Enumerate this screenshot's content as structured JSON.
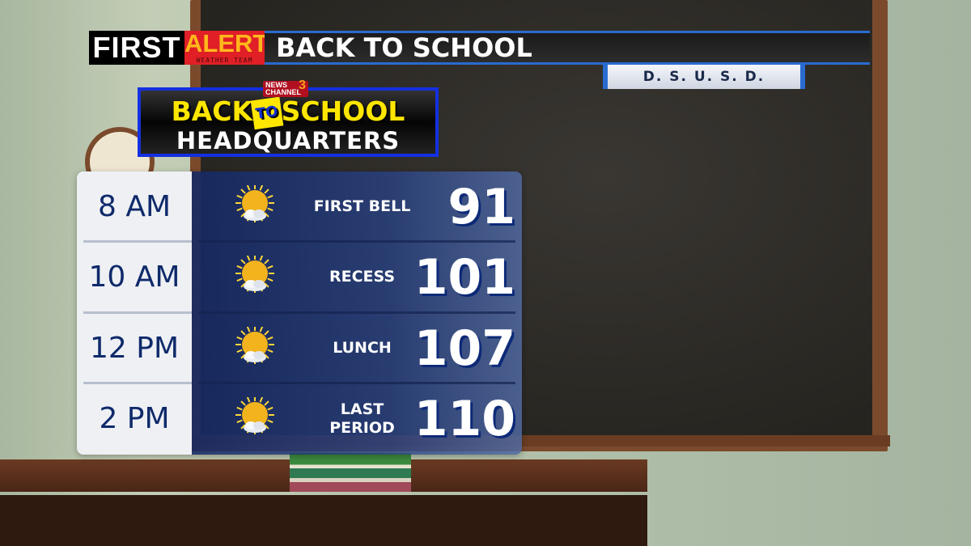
{
  "banner": {
    "first": "FIRST",
    "alert": "ALERT",
    "weather_team": "WEATHER TEAM",
    "title": "BACK TO SCHOOL"
  },
  "district_tab": "D. S. U. S. D.",
  "logo": {
    "station_news": "NEWS",
    "station_channel": "CHANNEL",
    "station_number": "3",
    "line1_a": "BACK",
    "line1_to": "TO",
    "line1_b": "SCHOOL",
    "line2": "HEADQUARTERS"
  },
  "forecast": [
    {
      "time": "8 AM",
      "icon": "mostly-sunny-icon",
      "label": "FIRST BELL",
      "temp": "91"
    },
    {
      "time": "10 AM",
      "icon": "mostly-sunny-icon",
      "label": "RECESS",
      "temp": "101"
    },
    {
      "time": "12 PM",
      "icon": "mostly-sunny-icon",
      "label": "LUNCH",
      "temp": "107"
    },
    {
      "time": "2 PM",
      "icon": "mostly-sunny-icon",
      "label": "LAST PERIOD",
      "temp": "110"
    }
  ],
  "colors": {
    "alert_red": "#e01f26",
    "alert_yellow": "#ffb81c",
    "accent_blue": "#2a6bd0",
    "time_text": "#0f2a6a"
  }
}
